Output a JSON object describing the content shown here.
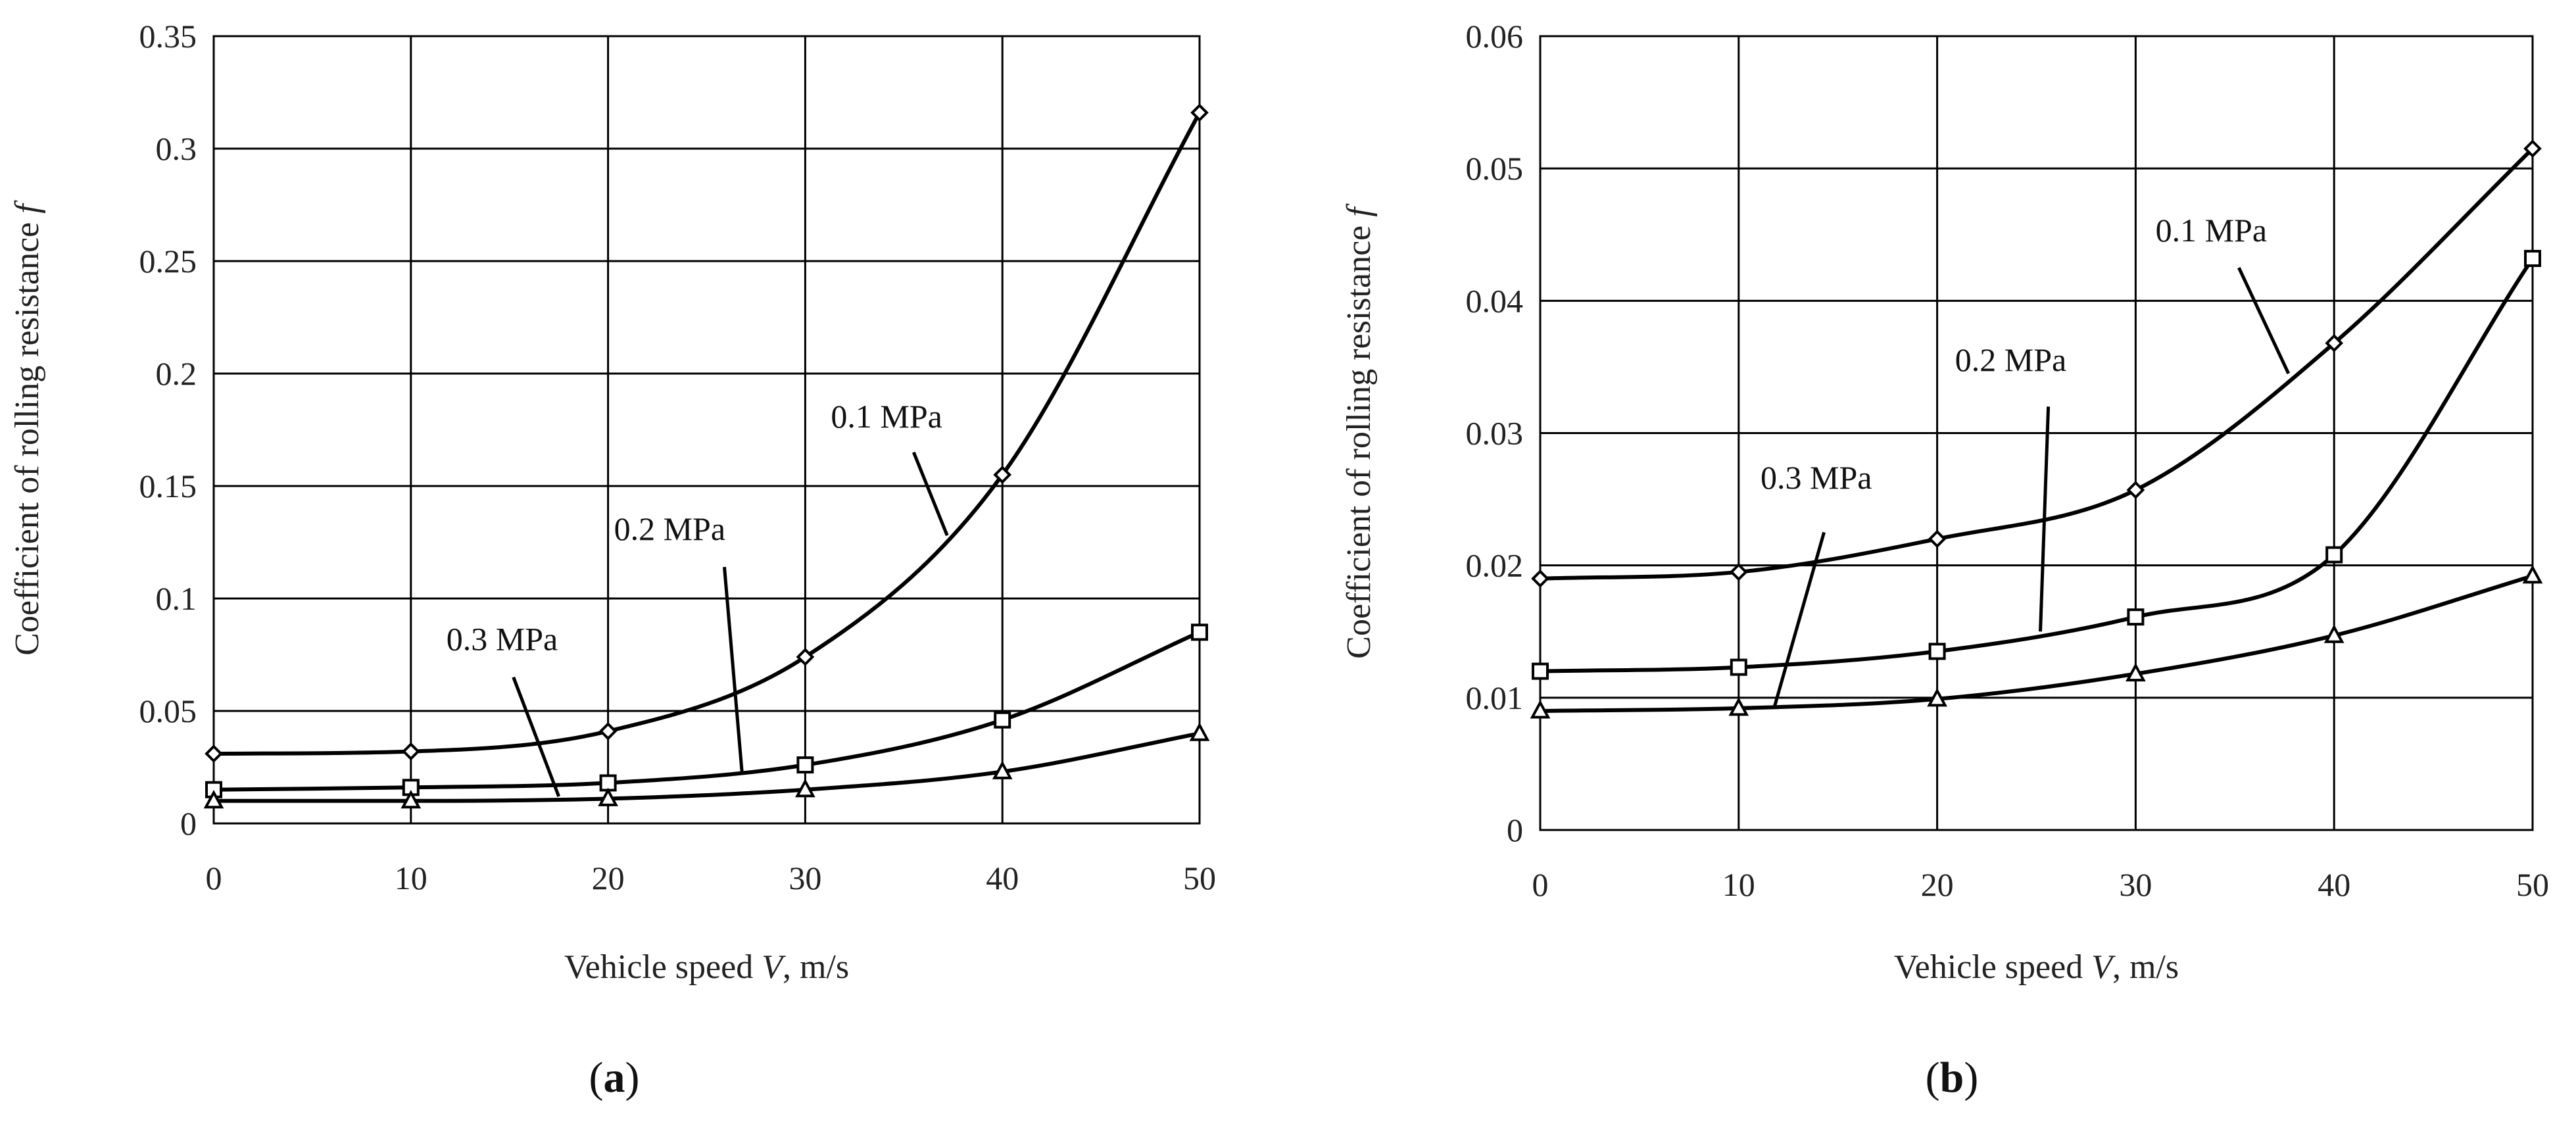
{
  "figure_panels": [
    {
      "label_open": "(",
      "label_letter": "a",
      "label_close": ")"
    },
    {
      "label_open": "(",
      "label_letter": "b",
      "label_close": ")"
    }
  ],
  "chart_data": [
    {
      "type": "line",
      "panel": "a",
      "title": "",
      "xlabel_prefix": "Vehicle speed ",
      "xlabel_symbol": "V",
      "xlabel_suffix": ", m/s",
      "ylabel_text": "Coefficient of rolling resistance ",
      "ylabel_symbol": "f",
      "xlim": [
        0,
        50
      ],
      "ylim": [
        0,
        0.35
      ],
      "grid": true,
      "x_ticks": [
        0,
        10,
        20,
        30,
        40,
        50
      ],
      "x_tick_labels": [
        "0",
        "10",
        "20",
        "30",
        "40",
        "50"
      ],
      "y_ticks": [
        0,
        0.05,
        0.1,
        0.15,
        0.2,
        0.25,
        0.3,
        0.35
      ],
      "y_tick_labels": [
        "0",
        "0.05",
        "0.1",
        "0.15",
        "0.2",
        "0.25",
        "0.3",
        "0.35"
      ],
      "x": [
        0,
        10,
        20,
        30,
        40,
        50
      ],
      "series": [
        {
          "name": "0.1 MPa",
          "marker": "diamond",
          "values": [
            0.031,
            0.032,
            0.041,
            0.074,
            0.155,
            0.316
          ]
        },
        {
          "name": "0.2 MPa",
          "marker": "square",
          "values": [
            0.015,
            0.016,
            0.018,
            0.026,
            0.046,
            0.085
          ]
        },
        {
          "name": "0.3 MPa",
          "marker": "triangle",
          "values": [
            0.01,
            0.01,
            0.011,
            0.015,
            0.023,
            0.04
          ]
        }
      ],
      "annotations": [
        {
          "text": "0.1 MPa",
          "series": "0.1 MPa",
          "text_at": [
            31.3,
            0.176
          ],
          "line_from": [
            35.5,
            0.165
          ],
          "line_to": [
            37.2,
            0.128
          ]
        },
        {
          "text": "0.2 MPa",
          "series": "0.2 MPa",
          "text_at": [
            20.3,
            0.126
          ],
          "line_from": [
            25.9,
            0.114
          ],
          "line_to": [
            26.8,
            0.022
          ]
        },
        {
          "text": "0.3 MPa",
          "series": "0.3 MPa",
          "text_at": [
            11.8,
            0.077
          ],
          "line_from": [
            15.2,
            0.065
          ],
          "line_to": [
            17.5,
            0.012
          ]
        }
      ]
    },
    {
      "type": "line",
      "panel": "b",
      "title": "",
      "xlabel_prefix": "Vehicle speed ",
      "xlabel_symbol": "V",
      "xlabel_suffix": ", m/s",
      "ylabel_text": "Coefficient of rolling resistance ",
      "ylabel_symbol": "f",
      "xlim": [
        0,
        50
      ],
      "ylim": [
        0,
        0.06
      ],
      "grid": true,
      "x_ticks": [
        0,
        10,
        20,
        30,
        40,
        50
      ],
      "x_tick_labels": [
        "0",
        "10",
        "20",
        "30",
        "40",
        "50"
      ],
      "y_ticks": [
        0,
        0.01,
        0.02,
        0.03,
        0.04,
        0.05,
        0.06
      ],
      "y_tick_labels": [
        "0",
        "0.01",
        "0.02",
        "0.03",
        "0.04",
        "0.05",
        "0.06"
      ],
      "x": [
        0,
        10,
        20,
        30,
        40,
        50
      ],
      "series": [
        {
          "name": "0.1 MPa",
          "marker": "diamond",
          "values": [
            0.019,
            0.0195,
            0.022,
            0.0257,
            0.0368,
            0.0515
          ]
        },
        {
          "name": "0.2 MPa",
          "marker": "square",
          "values": [
            0.012,
            0.0123,
            0.0135,
            0.0161,
            0.0208,
            0.0432
          ]
        },
        {
          "name": "0.3 MPa",
          "marker": "triangle",
          "values": [
            0.009,
            0.0092,
            0.0099,
            0.0118,
            0.0147,
            0.0192
          ]
        }
      ],
      "annotations": [
        {
          "text": "0.1 MPa",
          "series": "0.1 MPa",
          "text_at": [
            31.0,
            0.0445
          ],
          "line_from": [
            35.2,
            0.0425
          ],
          "line_to": [
            37.7,
            0.0345
          ]
        },
        {
          "text": "0.2 MPa",
          "series": "0.2 MPa",
          "text_at": [
            20.9,
            0.0347
          ],
          "line_from": [
            25.6,
            0.032
          ],
          "line_to": [
            25.2,
            0.015
          ]
        },
        {
          "text": "0.3 MPa",
          "series": "0.3 MPa",
          "text_at": [
            11.1,
            0.0258
          ],
          "line_from": [
            14.3,
            0.0225
          ],
          "line_to": [
            11.8,
            0.0093
          ]
        }
      ]
    }
  ]
}
